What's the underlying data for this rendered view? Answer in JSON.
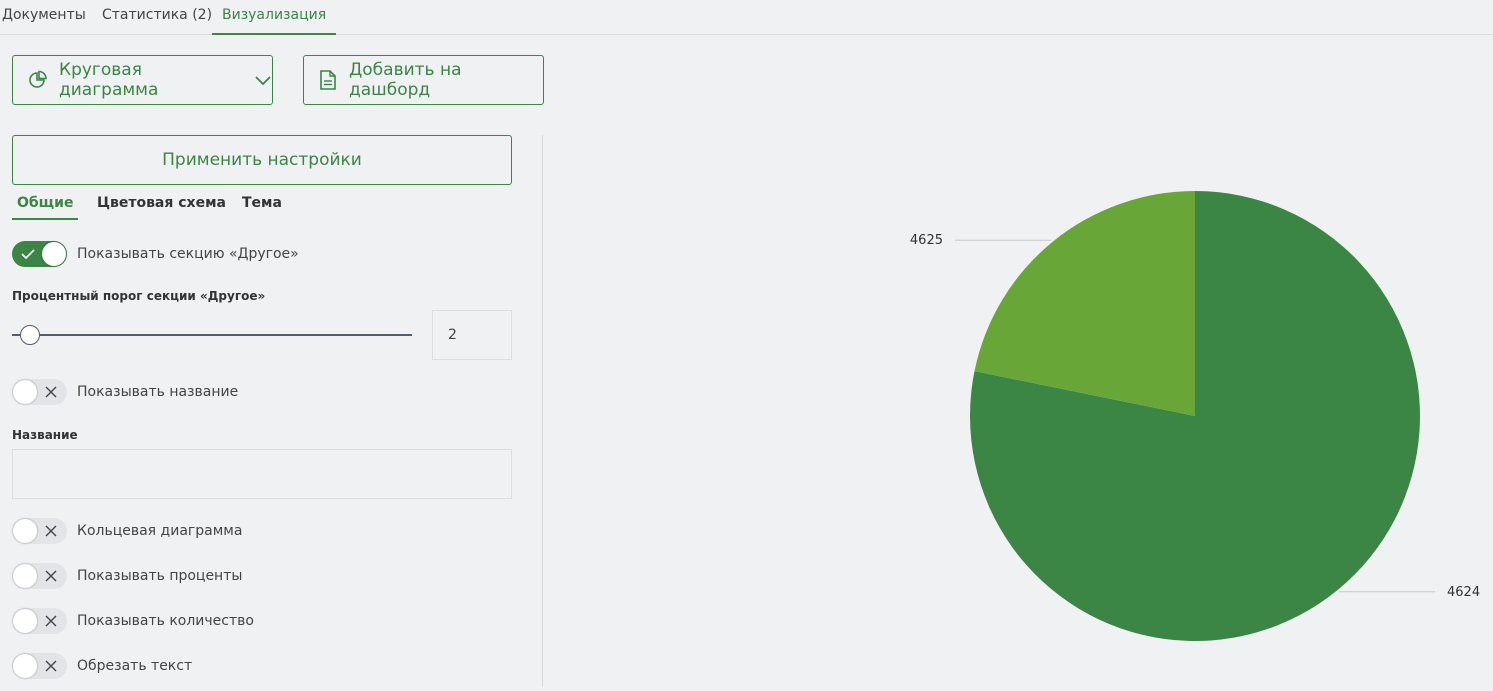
{
  "top_tabs": [
    {
      "label": "Документы"
    },
    {
      "label": "Статистика (2)"
    },
    {
      "label": "Визуализация"
    }
  ],
  "toolbar": {
    "chart_type_label": "Круговая диаграмма",
    "chart_type_icon": "pie-chart-icon",
    "add_dashboard_label": "Добавить на дашборд",
    "add_dashboard_icon": "document-icon"
  },
  "settings": {
    "apply_label": "Применить настройки",
    "tabs": [
      {
        "label": "Общие"
      },
      {
        "label": "Цветовая схема"
      },
      {
        "label": "Тема"
      }
    ],
    "show_other": {
      "label": "Показывать секцию «Другое»",
      "checked": true
    },
    "threshold_label": "Процентный порог секции «Другое»",
    "threshold_value": "2",
    "show_title": {
      "label": "Показывать название",
      "checked": false
    },
    "title_field_label": "Название",
    "title_value": "",
    "donut": {
      "label": "Кольцевая диаграмма",
      "checked": false
    },
    "show_percent": {
      "label": "Показывать проценты",
      "checked": false
    },
    "show_count": {
      "label": "Показывать количество",
      "checked": false
    },
    "truncate": {
      "label": "Обрезать текст",
      "checked": false
    }
  },
  "colors": {
    "accent": "#3b8545",
    "slice_main": "#3b8545",
    "slice_secondary": "#68a637"
  },
  "chart_data": {
    "type": "pie",
    "categories": [
      "4624",
      "4625"
    ],
    "values": [
      78.2,
      21.8
    ],
    "colors": [
      "#3b8545",
      "#68a637"
    ],
    "legend": "none"
  }
}
